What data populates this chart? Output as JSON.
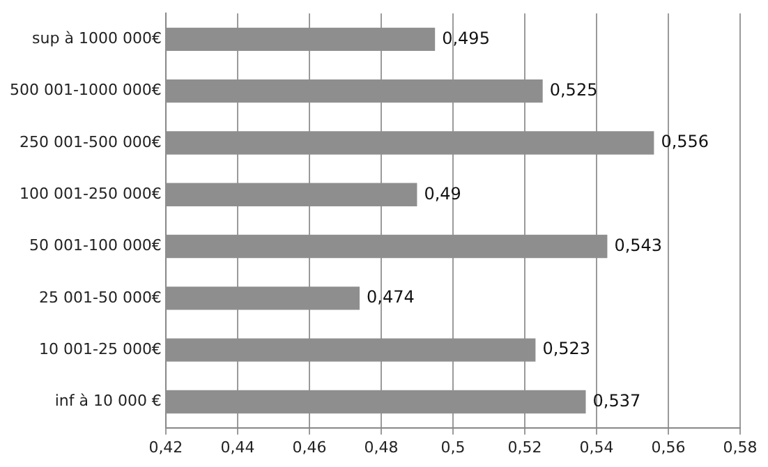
{
  "chart_data": {
    "type": "bar",
    "orientation": "horizontal",
    "categories": [
      "sup à 1000 000€",
      "500 001-1000 000€",
      "250 001-500 000€",
      "100 001-250 000€",
      "50 001-100 000€",
      "25 001-50 000€",
      "10 001-25 000€",
      "inf à 10 000 €"
    ],
    "values": [
      0.495,
      0.525,
      0.556,
      0.49,
      0.543,
      0.474,
      0.523,
      0.537
    ],
    "value_labels": [
      "0,495",
      "0,525",
      "0,556",
      "0,49",
      "0,543",
      "0,474",
      "0,523",
      "0,537"
    ],
    "color": "#8e8e8e",
    "xlim": [
      0.42,
      0.58
    ],
    "xticks": [
      {
        "value": 0.42,
        "label": "0,42"
      },
      {
        "value": 0.44,
        "label": "0,44"
      },
      {
        "value": 0.46,
        "label": "0,46"
      },
      {
        "value": 0.48,
        "label": "0,48"
      },
      {
        "value": 0.5,
        "label": "0,5"
      },
      {
        "value": 0.52,
        "label": "0,52"
      },
      {
        "value": 0.54,
        "label": "0,54"
      },
      {
        "value": 0.56,
        "label": "0,56"
      },
      {
        "value": 0.58,
        "label": "0,58"
      }
    ],
    "grid": "x",
    "legend": false
  }
}
